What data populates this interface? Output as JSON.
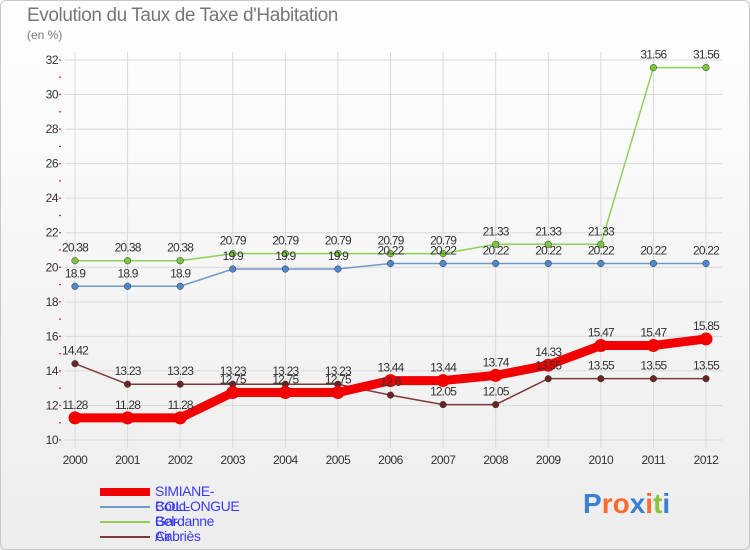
{
  "title": "Evolution du Taux de Taxe d'Habitation",
  "unit": "(en %)",
  "logo": "Proxiti",
  "colors": {
    "logo": [
      "#3a7fd6",
      "#ff6b2e",
      "#ff6b2e",
      "#3a7fd6",
      "#ff6b2e",
      "#8bc540",
      "#3a7fd6"
    ]
  },
  "chart_data": {
    "type": "line",
    "title": "Evolution du Taux de Taxe d'Habitation",
    "ylabel": "(en %)",
    "xlabel": "",
    "x": [
      "2000",
      "2001",
      "2002",
      "2003",
      "2004",
      "2005",
      "2006",
      "2007",
      "2008",
      "2009",
      "2010",
      "2011",
      "2012"
    ],
    "ylim": [
      10,
      32
    ],
    "yticks": [
      10,
      12,
      14,
      16,
      18,
      20,
      22,
      24,
      26,
      28,
      30,
      32
    ],
    "grid": true,
    "legend_position": "bottom-left",
    "series": [
      {
        "name": "Gardanne",
        "color": "#90d05a",
        "marker": "#7cc63e",
        "weight": 1.5,
        "values": [
          20.38,
          20.38,
          20.38,
          20.79,
          20.79,
          20.79,
          20.79,
          20.79,
          21.33,
          21.33,
          21.33,
          31.56,
          31.56
        ],
        "labels": [
          "20.38",
          "20.38",
          "20.38",
          "20.79",
          "20.79",
          "20.79",
          "20.79",
          "20.79",
          "21.33",
          "21.33",
          "21.33",
          "31.56",
          "31.56"
        ]
      },
      {
        "name": "Bouc-Bel-Air",
        "color": "#6f9ac8",
        "marker": "#4d88cc",
        "weight": 1.5,
        "values": [
          18.9,
          18.9,
          18.9,
          19.9,
          19.9,
          19.9,
          20.22,
          20.22,
          20.22,
          20.22,
          20.22,
          20.22,
          20.22
        ],
        "labels": [
          "18.9",
          "18.9",
          "18.9",
          "19.9",
          "19.9",
          "19.9",
          "20.22",
          "20.22",
          "20.22",
          "20.22",
          "20.22",
          "20.22",
          "20.22"
        ]
      },
      {
        "name": "Cabriès",
        "color": "#7d3a3a",
        "marker": "#6b2424",
        "weight": 1.5,
        "values": [
          14.42,
          13.23,
          13.23,
          13.23,
          13.23,
          13.23,
          12.6,
          12.05,
          12.05,
          13.55,
          13.55,
          13.55,
          13.55
        ],
        "labels": [
          "14.42",
          "13.23",
          "13.23",
          "13.23",
          "13.23",
          "13.23",
          "12.6",
          "12.05",
          "12.05",
          "13.55",
          "13.55",
          "13.55",
          "13.55"
        ]
      },
      {
        "name": "SIMIANE-COLLONGUE",
        "color": "#f20000",
        "marker": "#f20000",
        "weight": 9,
        "values": [
          11.28,
          11.28,
          11.28,
          12.75,
          12.75,
          12.75,
          13.44,
          13.44,
          13.74,
          14.33,
          15.47,
          15.47,
          15.85
        ],
        "labels": [
          "11.28",
          "11.28",
          "11.28",
          "12.75",
          "12.75",
          "12.75",
          "13.44",
          "13.44",
          "13.74",
          "14.33",
          "15.47",
          "15.47",
          "15.85"
        ]
      }
    ],
    "legend": [
      {
        "name": "SIMIANE-COLLONGUE",
        "color": "#f20000",
        "label_color": "#3a3aff"
      },
      {
        "name": "Bouc-Bel-Air",
        "color": "#6f9ac8",
        "label_color": "#3a3aff"
      },
      {
        "name": "Gardanne",
        "color": "#90d05a",
        "label_color": "#3a3aff"
      },
      {
        "name": "Cabriès",
        "color": "#7d3a3a",
        "label_color": "#3a3aff"
      }
    ]
  }
}
